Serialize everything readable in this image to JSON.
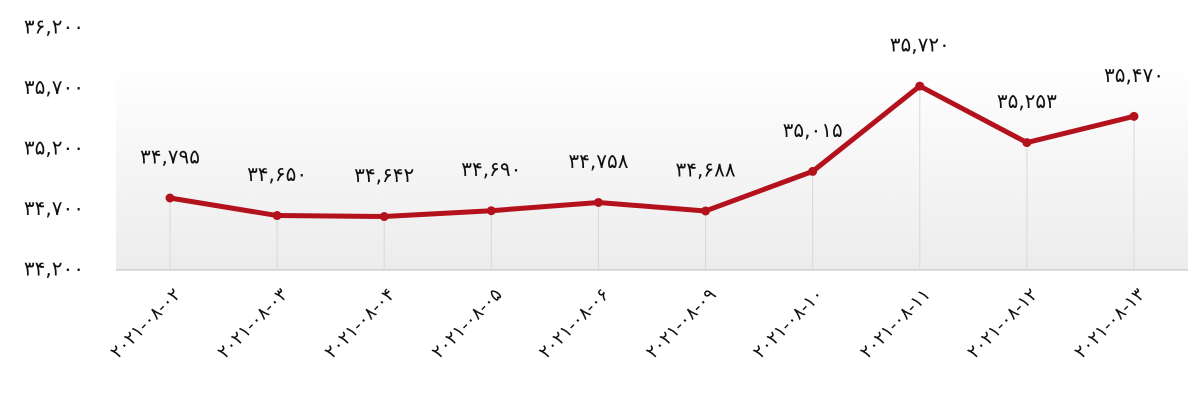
{
  "chart_data": {
    "type": "line",
    "categories": [
      "۲۰۲۱-۰۸-۰۲",
      "۲۰۲۱-۰۸-۰۳",
      "۲۰۲۱-۰۸-۰۴",
      "۲۰۲۱-۰۸-۰۵",
      "۲۰۲۱-۰۸-۰۶",
      "۲۰۲۱-۰۸-۰۹",
      "۲۰۲۱-۰۸-۱۰",
      "۲۰۲۱-۰۸-۱۱",
      "۲۰۲۱-۰۸-۱۲",
      "۲۰۲۱-۰۸-۱۳"
    ],
    "series": [
      {
        "color": "#b3121d",
        "values": [
          34795,
          34650,
          34642,
          34690,
          34758,
          34688,
          35015,
          35720,
          35253,
          35470
        ],
        "value_labels": [
          "۳۴,۷۹۵",
          "۳۴,۶۵۰",
          "۳۴,۶۴۲",
          "۳۴,۶۹۰",
          "۳۴,۷۵۸",
          "۳۴,۶۸۸",
          "۳۵,۰۱۵",
          "۳۵,۷۲۰",
          "۳۵,۲۵۳",
          "۳۵,۴۷۰"
        ]
      }
    ],
    "ylim": [
      34200,
      36200
    ],
    "yticks": [
      {
        "value": 34200,
        "label": "۳۴,۲۰۰"
      },
      {
        "value": 34700,
        "label": "۳۴,۷۰۰"
      },
      {
        "value": 35200,
        "label": "۳۵,۲۰۰"
      },
      {
        "value": 35700,
        "label": "۳۵,۷۰۰"
      },
      {
        "value": 36200,
        "label": "۳۶,۲۰۰"
      }
    ],
    "grid": false
  }
}
